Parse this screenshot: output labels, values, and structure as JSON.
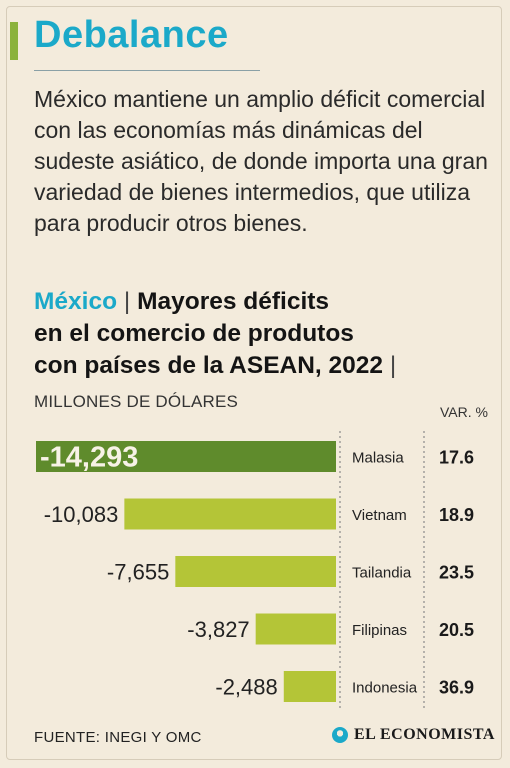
{
  "header": {
    "title": "Debalance",
    "intro": "México mantiene un amplio déficit comercial con las economías más dinámicas del sudeste asiático, de donde importa una gran variedad de bienes intermedios, que utiliza para producir otros bienes."
  },
  "chart_heading": {
    "country": "México",
    "separator_left": "|",
    "line1": "Mayores déficits",
    "line2": "en el comercio de produtos",
    "line3": "con países de la ASEAN, 2022",
    "separator_right": "|"
  },
  "chart_data": {
    "type": "bar",
    "title": "México | Mayores déficits en el comercio de produtos con países de la ASEAN, 2022",
    "unit_label": "MILLONES DE DÓLARES",
    "var_header": "VAR. %",
    "categories": [
      "Malasia",
      "Vietnam",
      "Tailandia",
      "Filipinas",
      "Indonesia"
    ],
    "values": [
      -14293,
      -10083,
      -7655,
      -3827,
      -2488
    ],
    "value_labels": [
      "-14,293",
      "-10,083",
      "-7,655",
      "-3,827",
      "-2,488"
    ],
    "var_percent": [
      "17.6",
      "18.9",
      "23.5",
      "20.5",
      "36.9"
    ],
    "highlight_index": 0,
    "colors": {
      "highlight": "#5f8b2c",
      "bar": "#b4c537",
      "accent": "#1ba9c9"
    }
  },
  "footer": {
    "source": "FUENTE: INEGI Y OMC",
    "logo_text": "EL ECONOMISTA"
  }
}
